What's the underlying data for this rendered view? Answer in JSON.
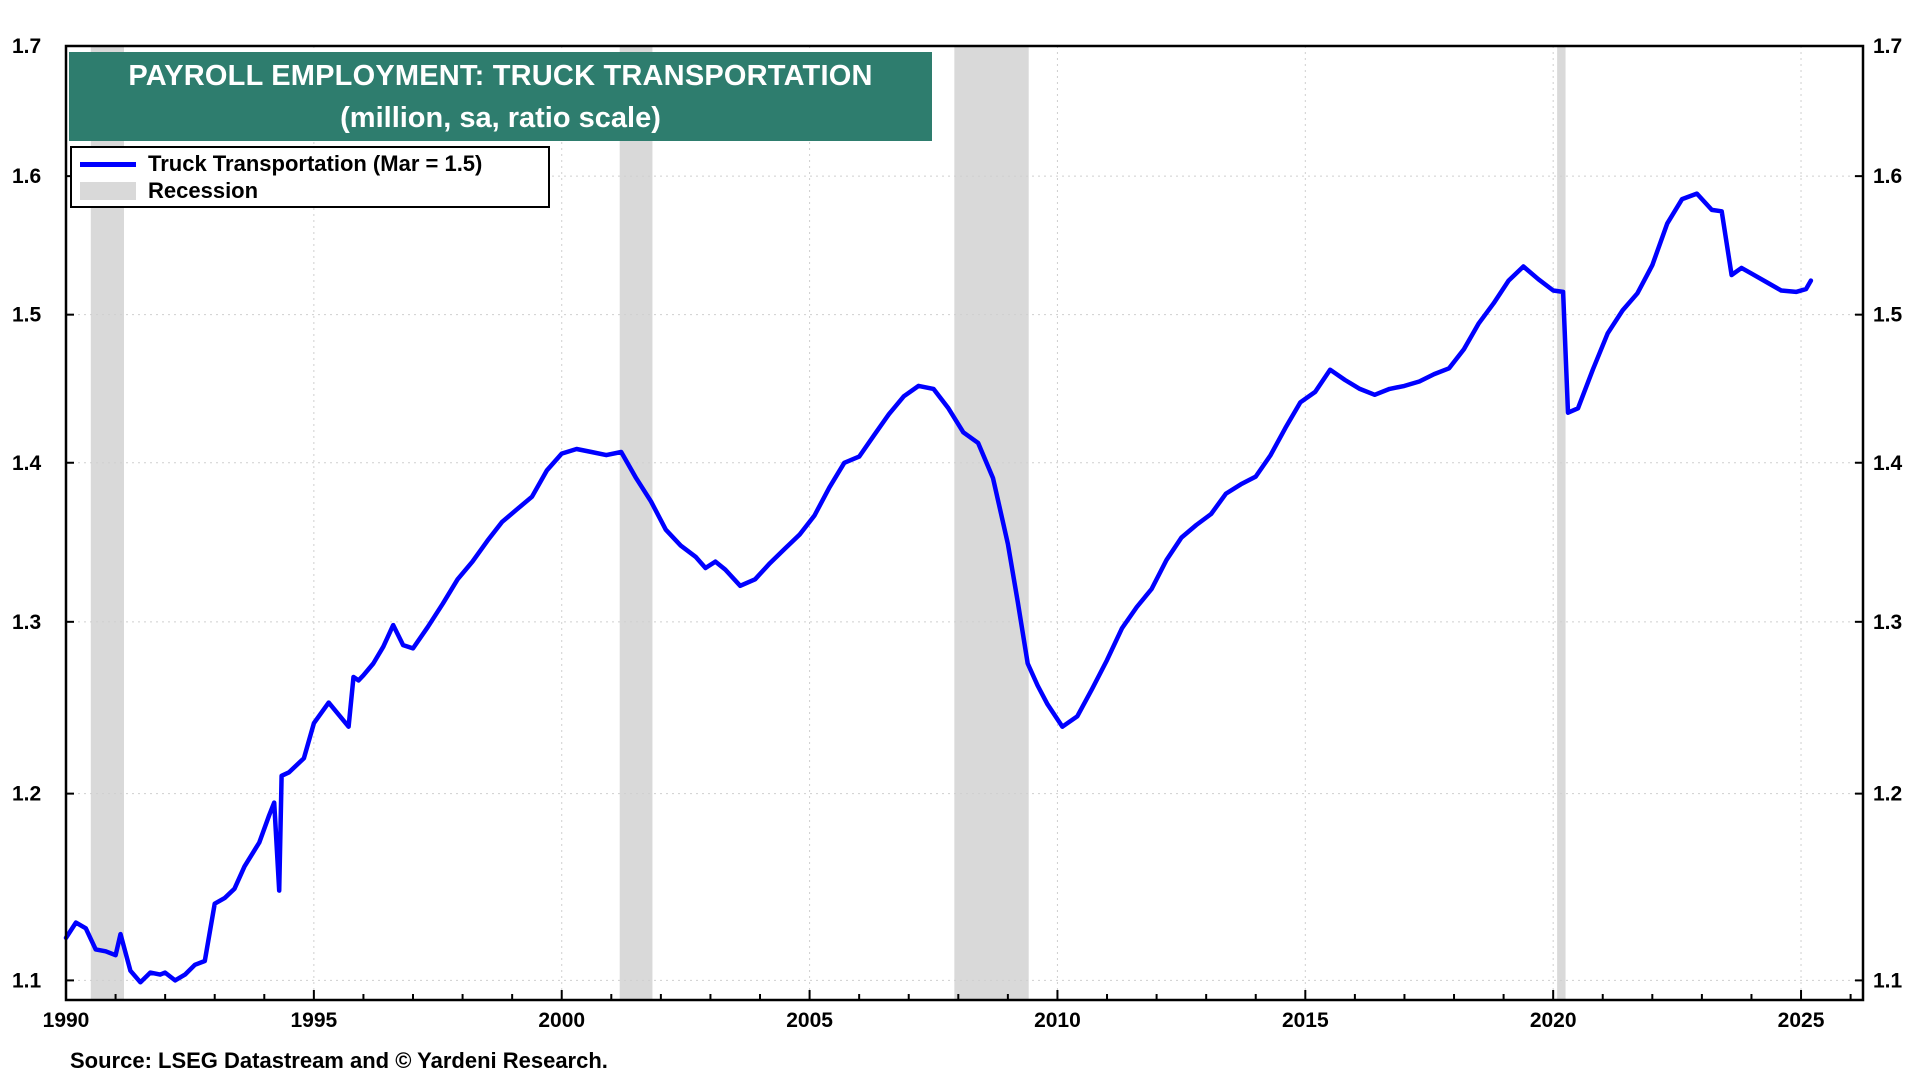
{
  "colors": {
    "series": "#0000ff",
    "recession": "#d9d9d9",
    "title_bg": "#2e7d6e",
    "title_text": "#ffffff",
    "grid": "#cfcfcf"
  },
  "title": {
    "line1": "PAYROLL EMPLOYMENT: TRUCK TRANSPORTATION",
    "line2": "(million, sa, ratio scale)"
  },
  "legend": {
    "series_label": "Truck Transportation (Mar = 1.5)",
    "recession_label": "Recession"
  },
  "source": "Source: LSEG Datastream and © Yardeni Research.",
  "chart_data": {
    "type": "line",
    "title": "PAYROLL EMPLOYMENT: TRUCK TRANSPORTATION",
    "subtitle": "(million, sa, ratio scale)",
    "scale": "log",
    "xlim": [
      1990,
      2026.25
    ],
    "ylim": [
      1.09,
      1.7
    ],
    "x_ticks": [
      1990,
      1995,
      2000,
      2005,
      2010,
      2015,
      2020,
      2025
    ],
    "x_tick_labels": [
      "1990",
      "1995",
      "2000",
      "2005",
      "2010",
      "2015",
      "2020",
      "2025"
    ],
    "y_ticks": [
      1.1,
      1.2,
      1.3,
      1.4,
      1.5,
      1.6,
      1.7
    ],
    "y_tick_labels": [
      "1.1",
      "1.2",
      "1.3",
      "1.4",
      "1.5",
      "1.6",
      "1.7"
    ],
    "grid": true,
    "legend_position": "top-left",
    "recessions": [
      [
        1990.5,
        1991.17
      ],
      [
        2001.17,
        2001.83
      ],
      [
        2007.92,
        2009.42
      ],
      [
        2020.08,
        2020.25
      ]
    ],
    "series": [
      {
        "name": "Truck Transportation (Mar = 1.5)",
        "x": [
          1990.0,
          1990.2,
          1990.4,
          1990.6,
          1990.8,
          1991.0,
          1991.1,
          1991.3,
          1991.5,
          1991.7,
          1991.9,
          1992.0,
          1992.2,
          1992.4,
          1992.6,
          1992.8,
          1993.0,
          1993.2,
          1993.4,
          1993.6,
          1993.9,
          1994.1,
          1994.2,
          1994.3,
          1994.35,
          1994.5,
          1994.8,
          1995.0,
          1995.3,
          1995.5,
          1995.7,
          1995.8,
          1995.9,
          1996.0,
          1996.2,
          1996.4,
          1996.6,
          1996.8,
          1997.0,
          1997.3,
          1997.6,
          1997.9,
          1998.2,
          1998.5,
          1998.8,
          1999.1,
          1999.4,
          1999.7,
          2000.0,
          2000.3,
          2000.6,
          2000.9,
          2001.2,
          2001.5,
          2001.8,
          2002.1,
          2002.4,
          2002.7,
          2002.9,
          2003.1,
          2003.3,
          2003.6,
          2003.9,
          2004.2,
          2004.5,
          2004.8,
          2005.1,
          2005.4,
          2005.7,
          2006.0,
          2006.3,
          2006.6,
          2006.9,
          2007.2,
          2007.5,
          2007.8,
          2008.1,
          2008.4,
          2008.7,
          2009.0,
          2009.2,
          2009.4,
          2009.6,
          2009.8,
          2010.1,
          2010.4,
          2010.7,
          2011.0,
          2011.3,
          2011.6,
          2011.9,
          2012.2,
          2012.5,
          2012.8,
          2013.1,
          2013.4,
          2013.7,
          2014.0,
          2014.3,
          2014.6,
          2014.9,
          2015.2,
          2015.5,
          2015.8,
          2016.1,
          2016.4,
          2016.7,
          2017.0,
          2017.3,
          2017.6,
          2017.9,
          2018.2,
          2018.5,
          2018.8,
          2019.1,
          2019.4,
          2019.7,
          2020.0,
          2020.2,
          2020.3,
          2020.5,
          2020.8,
          2021.1,
          2021.4,
          2021.7,
          2022.0,
          2022.3,
          2022.6,
          2022.9,
          2023.2,
          2023.4,
          2023.6,
          2023.8,
          2024.0,
          2024.3,
          2024.6,
          2024.9,
          2025.1,
          2025.2
        ],
        "values": [
          1.122,
          1.13,
          1.127,
          1.116,
          1.115,
          1.113,
          1.124,
          1.105,
          1.099,
          1.104,
          1.103,
          1.104,
          1.1,
          1.103,
          1.108,
          1.11,
          1.14,
          1.143,
          1.148,
          1.16,
          1.173,
          1.188,
          1.195,
          1.147,
          1.21,
          1.212,
          1.22,
          1.24,
          1.252,
          1.245,
          1.238,
          1.267,
          1.265,
          1.268,
          1.275,
          1.285,
          1.298,
          1.286,
          1.284,
          1.297,
          1.311,
          1.326,
          1.337,
          1.35,
          1.362,
          1.37,
          1.378,
          1.395,
          1.406,
          1.409,
          1.407,
          1.405,
          1.407,
          1.39,
          1.375,
          1.357,
          1.347,
          1.34,
          1.333,
          1.337,
          1.332,
          1.322,
          1.326,
          1.336,
          1.345,
          1.354,
          1.366,
          1.384,
          1.4,
          1.404,
          1.418,
          1.432,
          1.444,
          1.451,
          1.449,
          1.436,
          1.42,
          1.413,
          1.39,
          1.348,
          1.312,
          1.275,
          1.262,
          1.251,
          1.238,
          1.244,
          1.26,
          1.277,
          1.296,
          1.309,
          1.32,
          1.338,
          1.352,
          1.36,
          1.367,
          1.38,
          1.386,
          1.391,
          1.405,
          1.423,
          1.44,
          1.447,
          1.462,
          1.455,
          1.449,
          1.445,
          1.449,
          1.451,
          1.454,
          1.459,
          1.463,
          1.476,
          1.494,
          1.508,
          1.524,
          1.534,
          1.525,
          1.517,
          1.516,
          1.433,
          1.436,
          1.462,
          1.487,
          1.503,
          1.515,
          1.535,
          1.565,
          1.583,
          1.587,
          1.575,
          1.574,
          1.528,
          1.533,
          1.529,
          1.523,
          1.517,
          1.516,
          1.518,
          1.524
        ]
      }
    ]
  }
}
